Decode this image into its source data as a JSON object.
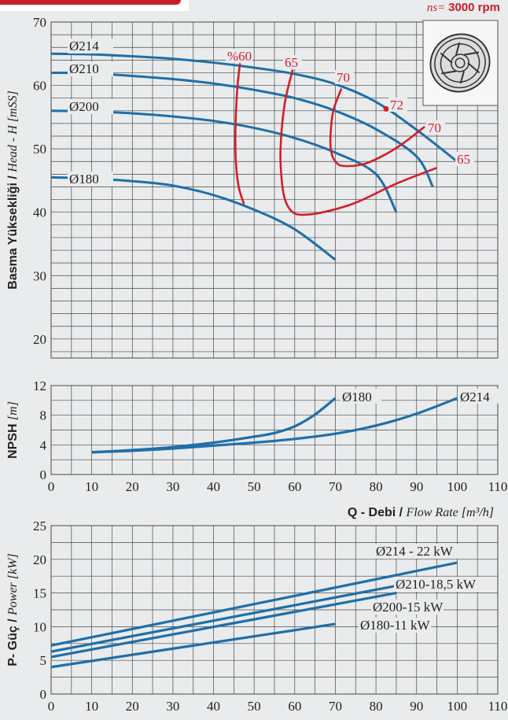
{
  "header": {
    "speed_prefix": "ns=",
    "speed_value": "3000 rpm"
  },
  "colors": {
    "curve": "#1f6fa8",
    "efficiency": "#d11f2a",
    "grid": "#4a4a4a",
    "background": "#e9ebec",
    "accent_red": "#c81e2a"
  },
  "impeller_icon": "impeller-icon",
  "chart_data": [
    {
      "type": "line",
      "id": "head",
      "ylabel_bold": "Basma Yüksekliği /",
      "ylabel_italic": "Head - H [mSS]",
      "xlim": [
        0,
        110
      ],
      "ylim": [
        17,
        70
      ],
      "yticks": [
        20,
        30,
        40,
        50,
        60,
        70
      ],
      "grid": true,
      "series": [
        {
          "name": "Ø214",
          "points": [
            [
              0,
              65
            ],
            [
              10,
              64.9
            ],
            [
              20,
              64.6
            ],
            [
              30,
              64.2
            ],
            [
              40,
              63.6
            ],
            [
              50,
              62.8
            ],
            [
              60,
              61.8
            ],
            [
              70,
              60.2
            ],
            [
              80,
              57.4
            ],
            [
              90,
              53
            ],
            [
              100,
              48
            ]
          ]
        },
        {
          "name": "Ø210",
          "points": [
            [
              0,
              62
            ],
            [
              10,
              61.9
            ],
            [
              20,
              61.5
            ],
            [
              30,
              61
            ],
            [
              40,
              60.3
            ],
            [
              50,
              59.3
            ],
            [
              60,
              58
            ],
            [
              70,
              56
            ],
            [
              80,
              53.1
            ],
            [
              90,
              48.8
            ],
            [
              94,
              44
            ]
          ]
        },
        {
          "name": "Ø200",
          "points": [
            [
              0,
              56
            ],
            [
              10,
              55.9
            ],
            [
              20,
              55.6
            ],
            [
              30,
              55.1
            ],
            [
              40,
              54.4
            ],
            [
              50,
              53.3
            ],
            [
              60,
              51.7
            ],
            [
              70,
              49.4
            ],
            [
              80,
              46
            ],
            [
              85,
              40
            ]
          ]
        },
        {
          "name": "Ø180",
          "points": [
            [
              0,
              45.5
            ],
            [
              10,
              45.3
            ],
            [
              20,
              44.9
            ],
            [
              30,
              44.2
            ],
            [
              40,
              42.7
            ],
            [
              50,
              40.4
            ],
            [
              60,
              37.3
            ],
            [
              70,
              32.5
            ]
          ]
        }
      ],
      "efficiency_curves": [
        {
          "label": "%60",
          "points": [
            [
              46.5,
              63.5
            ],
            [
              45.8,
              59
            ],
            [
              45.4,
              53
            ],
            [
              45.5,
              48
            ],
            [
              46.2,
              44
            ],
            [
              47.5,
              41.3
            ]
          ]
        },
        {
          "label": "65",
          "points": [
            [
              59.5,
              62.5
            ],
            [
              57.5,
              57
            ],
            [
              56.5,
              50
            ],
            [
              56.8,
              45
            ],
            [
              57.7,
              41.8
            ],
            [
              59.5,
              40
            ],
            [
              62,
              39.6
            ],
            [
              67,
              40
            ],
            [
              75,
              41.5
            ],
            [
              85,
              44.5
            ],
            [
              95,
              47
            ]
          ]
        },
        {
          "label": "70",
          "points": [
            [
              71.5,
              59.5
            ],
            [
              69.5,
              56
            ],
            [
              68.8,
              52
            ],
            [
              69,
              49.5
            ],
            [
              70,
              48
            ],
            [
              72,
              47.3
            ],
            [
              77,
              47.6
            ],
            [
              82,
              49
            ],
            [
              87,
              51
            ],
            [
              92,
              53.5
            ]
          ]
        },
        {
          "label": "72",
          "points": [
            [
              82.5,
              56.3
            ]
          ]
        },
        {
          "label": "70",
          "points": []
        },
        {
          "label": "65",
          "points": []
        }
      ]
    },
    {
      "type": "line",
      "id": "npsh",
      "ylabel_bold": "NPSH",
      "ylabel_italic": "[m]",
      "xlim": [
        0,
        110
      ],
      "ylim": [
        0,
        12
      ],
      "yticks": [
        0,
        4,
        8,
        12
      ],
      "xticks": [
        0,
        10,
        20,
        30,
        40,
        50,
        60,
        70,
        80,
        90,
        100,
        110
      ],
      "grid": true,
      "series": [
        {
          "name": "Ø180",
          "points": [
            [
              10,
              3
            ],
            [
              20,
              3.3
            ],
            [
              30,
              3.7
            ],
            [
              40,
              4.3
            ],
            [
              50,
              5.1
            ],
            [
              55,
              5.6
            ],
            [
              60,
              6.5
            ],
            [
              65,
              8.1
            ],
            [
              70,
              10.3
            ]
          ]
        },
        {
          "name": "Ø214",
          "points": [
            [
              10,
              3
            ],
            [
              20,
              3.2
            ],
            [
              30,
              3.5
            ],
            [
              40,
              3.9
            ],
            [
              50,
              4.3
            ],
            [
              60,
              4.8
            ],
            [
              70,
              5.5
            ],
            [
              80,
              6.6
            ],
            [
              90,
              8.2
            ],
            [
              100,
              10.3
            ]
          ]
        }
      ]
    },
    {
      "type": "line",
      "id": "power",
      "xlabel_bold": "Q - Debi /",
      "xlabel_italic": "Flow Rate [m³/h]",
      "ylabel_bold": "P- Güç /",
      "ylabel_italic": "Power [kW]",
      "xlim": [
        0,
        110
      ],
      "ylim": [
        0,
        25
      ],
      "yticks": [
        0,
        5,
        10,
        15,
        20,
        25
      ],
      "xticks": [
        0,
        10,
        20,
        30,
        40,
        50,
        60,
        70,
        80,
        90,
        100,
        110
      ],
      "grid": true,
      "series": [
        {
          "name": "Ø214 - 22 kW",
          "points": [
            [
              0,
              7.2
            ],
            [
              100,
              19.5
            ]
          ]
        },
        {
          "name": "Ø210-18,5 kW",
          "points": [
            [
              0,
              6.3
            ],
            [
              94,
              17.1
            ]
          ]
        },
        {
          "name": "Ø200-15 kW",
          "points": [
            [
              0,
              5.5
            ],
            [
              85,
              15
            ]
          ]
        },
        {
          "name": "Ø180-11 kW",
          "points": [
            [
              0,
              4
            ],
            [
              70,
              10.4
            ]
          ]
        }
      ]
    }
  ]
}
